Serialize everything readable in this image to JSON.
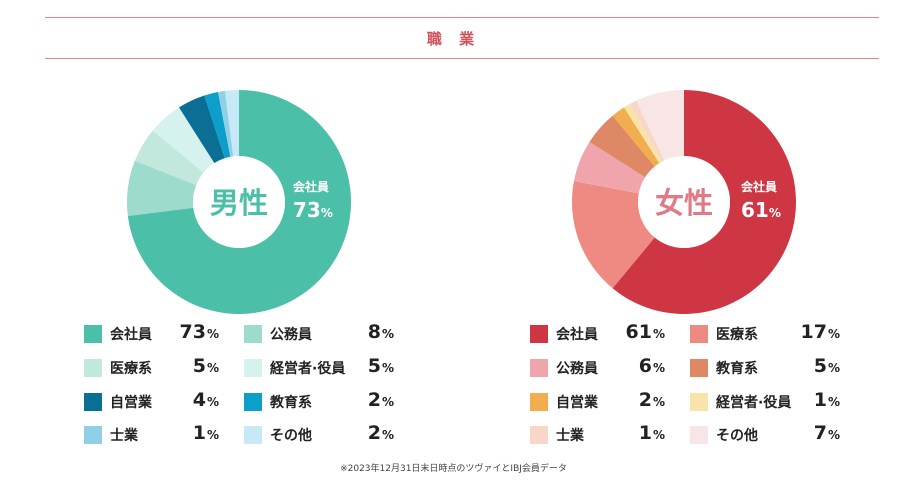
{
  "title": "職 業",
  "note": "※2023年12月31日末日時点のツヴァイとIBJ会員データ",
  "chart_data": [
    {
      "type": "pie",
      "center_label": "男性",
      "highlight_label": "会社員",
      "highlight_value": "73",
      "unit": "%",
      "center_color": "#4bbfa8",
      "slices": [
        {
          "label": "会社員",
          "value": 73,
          "color": "#4bbfa8"
        },
        {
          "label": "公務員",
          "value": 8,
          "color": "#9ddbcc"
        },
        {
          "label": "医療系",
          "value": 5,
          "color": "#c2e8de"
        },
        {
          "label": "経営者·役員",
          "value": 5,
          "color": "#d5f2ee"
        },
        {
          "label": "自営業",
          "value": 4,
          "color": "#0b6f95"
        },
        {
          "label": "教育系",
          "value": 2,
          "color": "#0c9fc9"
        },
        {
          "label": "士業",
          "value": 1,
          "color": "#8fd0e6"
        },
        {
          "label": "その他",
          "value": 2,
          "color": "#c6e8f7"
        }
      ],
      "legend_order": [
        "会社員",
        "公務員",
        "医療系",
        "経営者·役員",
        "自営業",
        "教育系",
        "士業",
        "その他"
      ]
    },
    {
      "type": "pie",
      "center_label": "女性",
      "highlight_label": "会社員",
      "highlight_value": "61",
      "unit": "%",
      "center_color": "#e07a86",
      "slices": [
        {
          "label": "会社員",
          "value": 61,
          "color": "#cf3644"
        },
        {
          "label": "医療系",
          "value": 17,
          "color": "#ef8a82"
        },
        {
          "label": "公務員",
          "value": 6,
          "color": "#f0a5ad"
        },
        {
          "label": "教育系",
          "value": 5,
          "color": "#df8866"
        },
        {
          "label": "自営業",
          "value": 2,
          "color": "#f2ad4f"
        },
        {
          "label": "経営者·役員",
          "value": 1,
          "color": "#f8e4a8"
        },
        {
          "label": "士業",
          "value": 1,
          "color": "#f8d7c8"
        },
        {
          "label": "その他",
          "value": 7,
          "color": "#f8e6e6"
        }
      ],
      "legend_order": [
        "会社員",
        "医療系",
        "公務員",
        "教育系",
        "自営業",
        "経営者·役員",
        "士業",
        "その他"
      ]
    }
  ]
}
